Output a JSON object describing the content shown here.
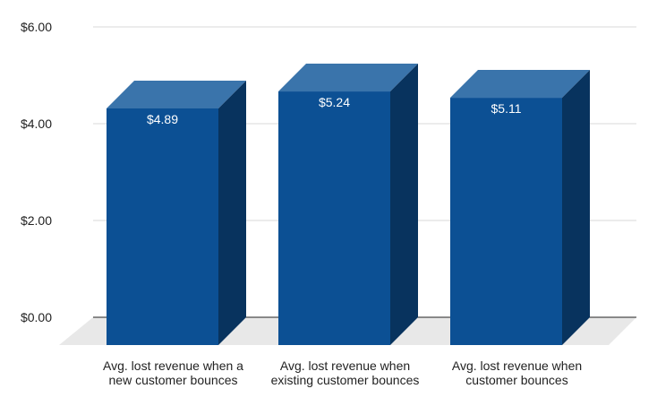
{
  "chart_data": {
    "type": "bar",
    "style": "3d",
    "categories": [
      [
        "Avg. lost revenue when a",
        "new customer bounces"
      ],
      [
        "Avg. lost revenue when",
        "existing customer bounces"
      ],
      [
        "Avg. lost revenue when",
        "customer bounces"
      ]
    ],
    "values": [
      4.89,
      5.24,
      5.11
    ],
    "data_labels": [
      "$4.89",
      "$5.24",
      "$5.11"
    ],
    "ylim": [
      0,
      6
    ],
    "y_ticks": [
      0,
      2,
      4,
      6
    ],
    "y_tick_labels": [
      "$0.00",
      "$2.00",
      "$4.00",
      "$6.00"
    ],
    "title": "",
    "xlabel": "",
    "ylabel": "",
    "grid": true,
    "legend": "none",
    "colors": {
      "bar_front": "#0c5094",
      "bar_top": "#3a74ab",
      "bar_side": "#08335e",
      "floor": "#e8e8e8",
      "grid": "#d9d9d9",
      "baseline": "#222222"
    }
  }
}
